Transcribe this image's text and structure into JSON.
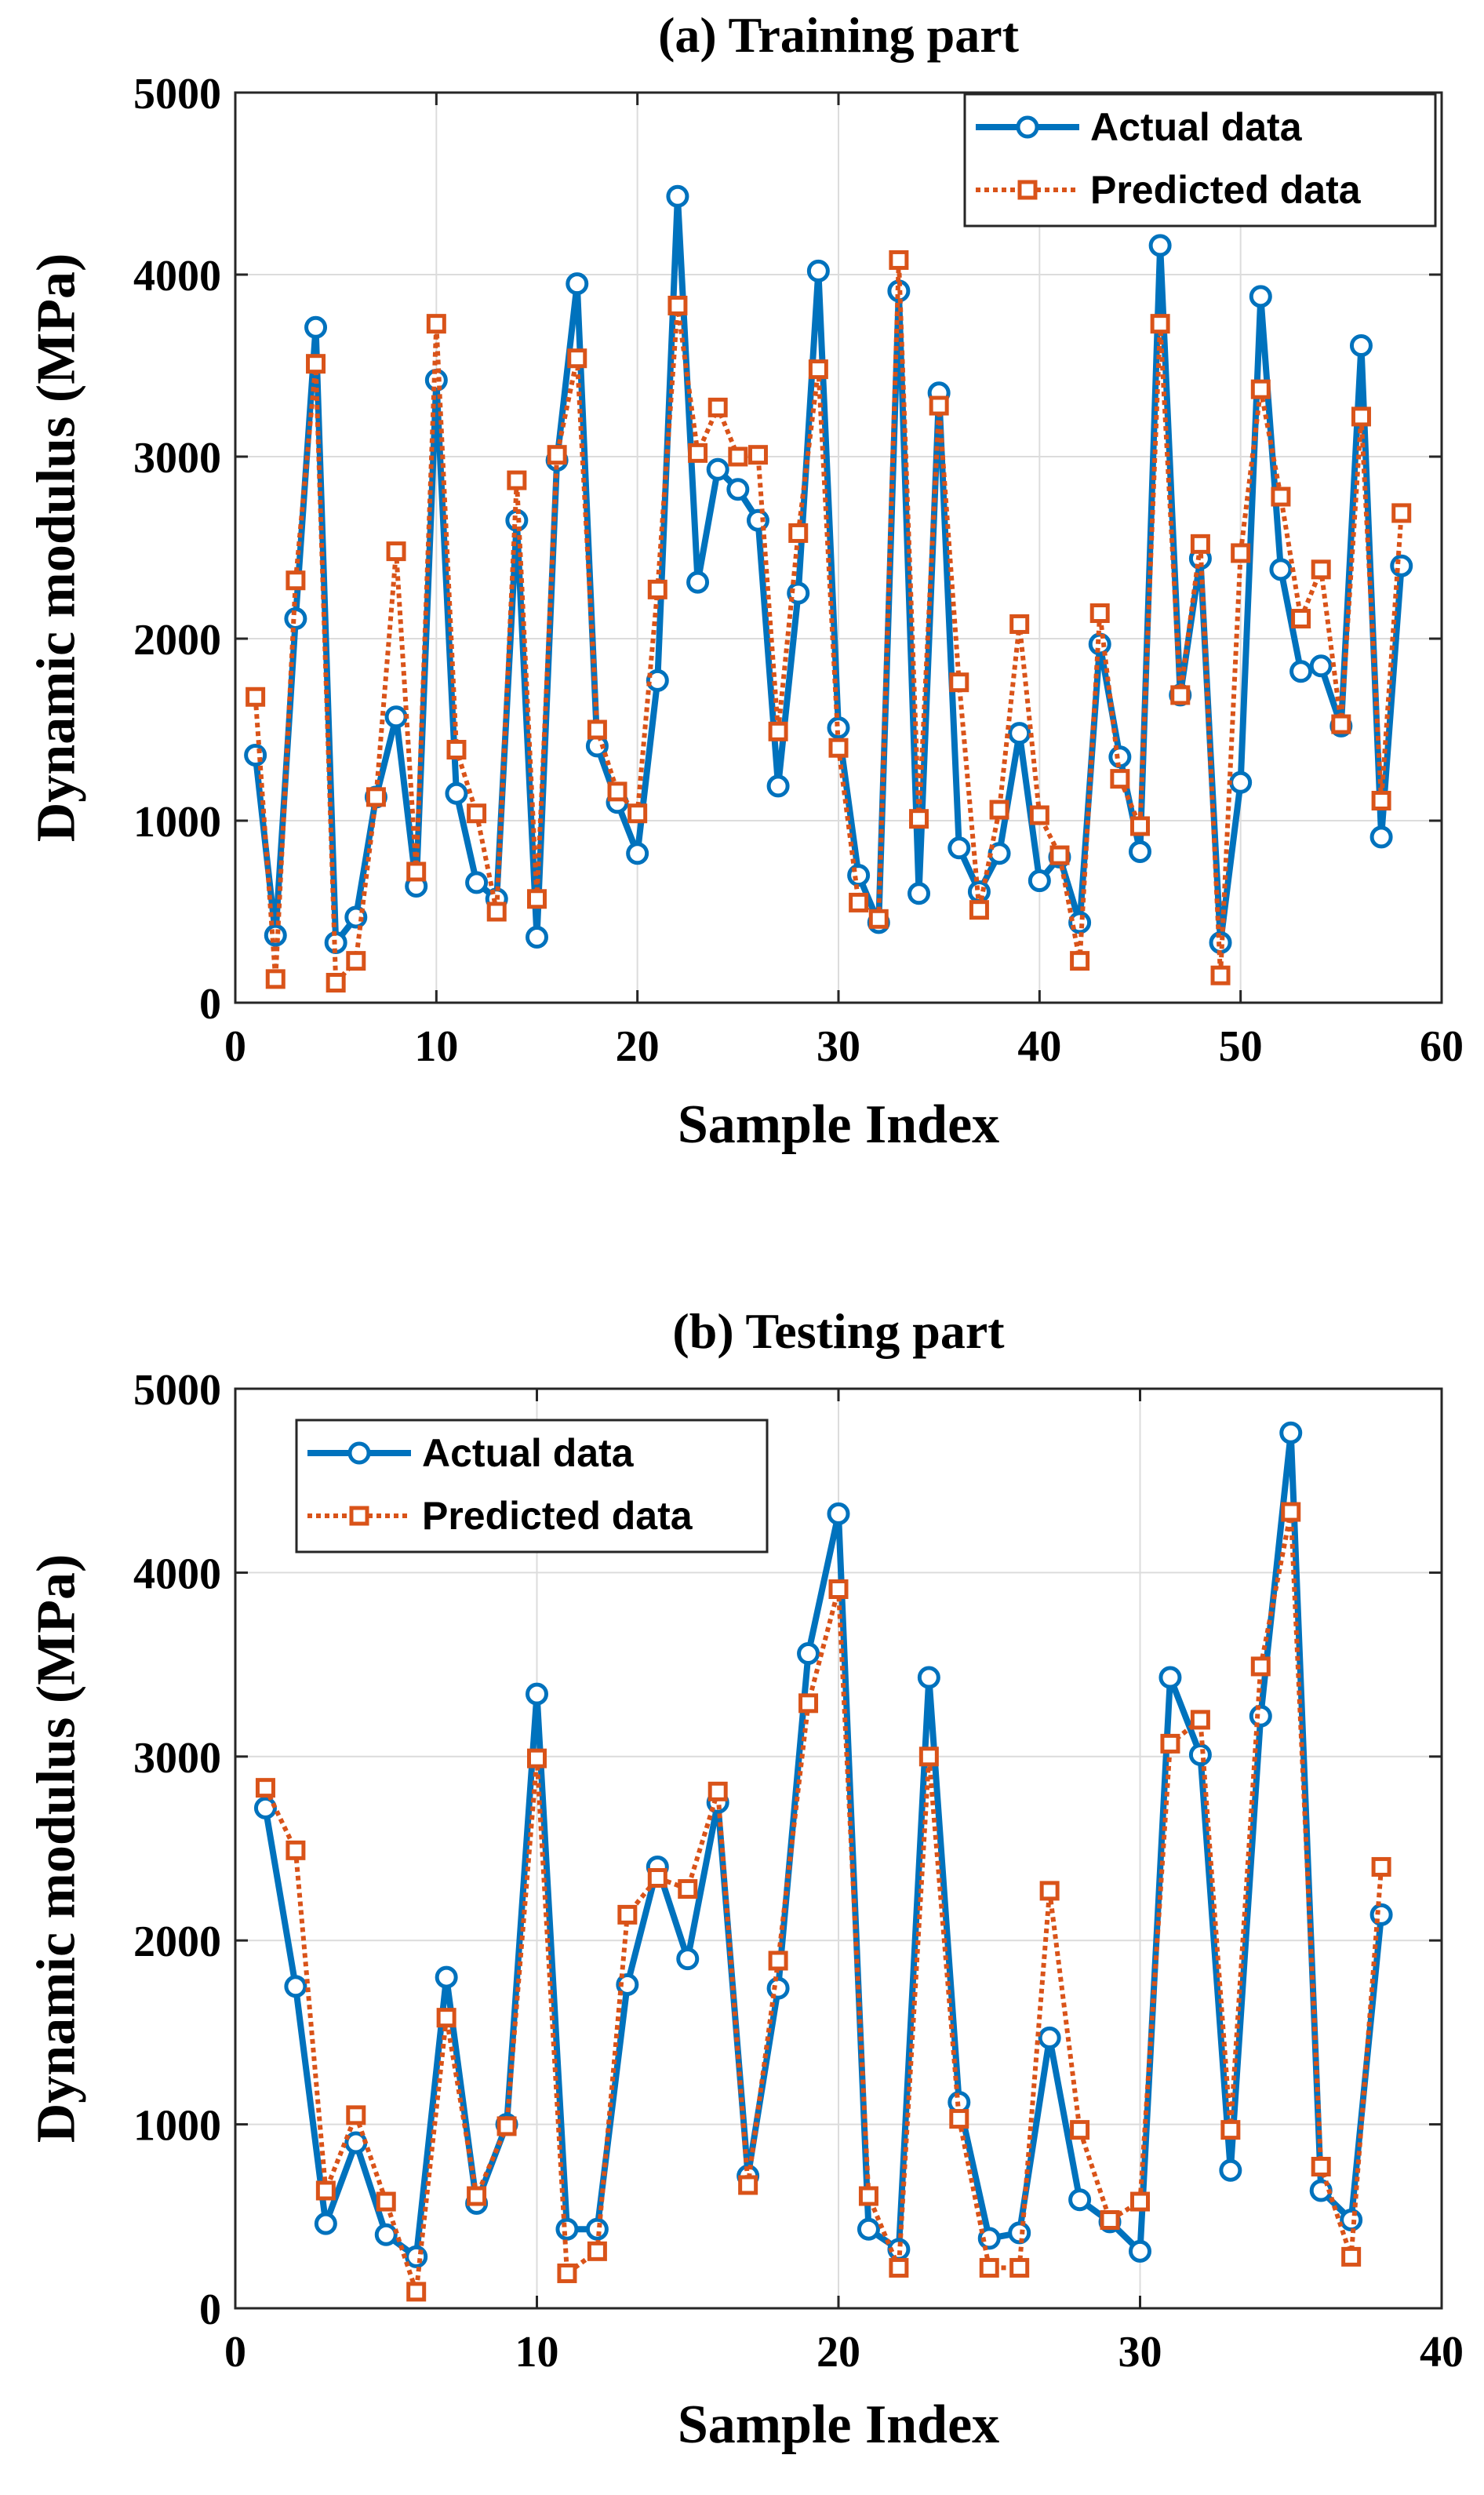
{
  "colors": {
    "actual": "#0072BD",
    "predicted": "#D95319",
    "grid": "#dcdcdc",
    "axis": "#262626"
  },
  "chart_data": [
    {
      "type": "line",
      "title": "(a) Training part",
      "xlabel": "Sample Index",
      "ylabel": "Dynamic modulus (MPa)",
      "xlim": [
        0,
        60
      ],
      "ylim": [
        0,
        5000
      ],
      "xticks": [
        0,
        10,
        20,
        30,
        40,
        50,
        60
      ],
      "yticks": [
        0,
        1000,
        2000,
        3000,
        4000,
        5000
      ],
      "grid": true,
      "legend_position": "top-right",
      "x": [
        1,
        2,
        3,
        4,
        5,
        6,
        7,
        8,
        9,
        10,
        11,
        12,
        13,
        14,
        15,
        16,
        17,
        18,
        19,
        20,
        21,
        22,
        23,
        24,
        25,
        26,
        27,
        28,
        29,
        30,
        31,
        32,
        33,
        34,
        35,
        36,
        37,
        38,
        39,
        40,
        41,
        42,
        43,
        44,
        45,
        46,
        47,
        48,
        49,
        50,
        51,
        52,
        53,
        54,
        55,
        56,
        57,
        58
      ],
      "series": [
        {
          "name": "Actual data",
          "marker": "circle",
          "line": "solid",
          "values": [
            1360,
            370,
            2110,
            3710,
            330,
            470,
            1130,
            1570,
            640,
            3420,
            1150,
            660,
            570,
            2650,
            360,
            2980,
            3950,
            1410,
            1100,
            820,
            1770,
            4430,
            2310,
            2930,
            2820,
            2650,
            1190,
            2250,
            4020,
            1510,
            700,
            440,
            3910,
            600,
            3350,
            850,
            610,
            820,
            1480,
            670,
            800,
            440,
            1970,
            1350,
            830,
            4160,
            1690,
            2440,
            330,
            1210,
            3880,
            2380,
            1820,
            1850,
            1520,
            3610,
            910,
            2400
          ]
        },
        {
          "name": "Predicted data",
          "marker": "square",
          "line": "dotted",
          "values": [
            1680,
            130,
            2320,
            3510,
            110,
            230,
            1130,
            2480,
            720,
            3730,
            1390,
            1040,
            500,
            2870,
            570,
            3010,
            3540,
            1500,
            1160,
            1040,
            2270,
            3830,
            3020,
            3270,
            3000,
            3010,
            1490,
            2580,
            3480,
            1400,
            550,
            460,
            4080,
            1010,
            3280,
            1760,
            510,
            1060,
            2080,
            1030,
            810,
            230,
            2140,
            1230,
            970,
            3730,
            1690,
            2520,
            150,
            2470,
            3370,
            2780,
            2110,
            2380,
            1530,
            3220,
            1110,
            2690
          ]
        }
      ]
    },
    {
      "type": "line",
      "title": "(b) Testing part",
      "xlabel": "Sample Index",
      "ylabel": "Dynamic modulus (MPa)",
      "xlim": [
        0,
        40
      ],
      "ylim": [
        0,
        5000
      ],
      "xticks": [
        0,
        10,
        20,
        30,
        40
      ],
      "yticks": [
        0,
        1000,
        2000,
        3000,
        4000,
        5000
      ],
      "grid": true,
      "legend_position": "top-left",
      "x": [
        1,
        2,
        3,
        4,
        5,
        6,
        7,
        8,
        9,
        10,
        11,
        12,
        13,
        14,
        15,
        16,
        17,
        18,
        19,
        20,
        21,
        22,
        23,
        24,
        25,
        26,
        27,
        28,
        29,
        30,
        31,
        32,
        33,
        34,
        35,
        36,
        37,
        38
      ],
      "series": [
        {
          "name": "Actual data",
          "marker": "circle",
          "line": "solid",
          "values": [
            2720,
            1750,
            460,
            900,
            400,
            280,
            1800,
            570,
            1000,
            3340,
            430,
            430,
            1760,
            2400,
            1900,
            2750,
            720,
            1740,
            3560,
            4320,
            430,
            320,
            3430,
            1120,
            380,
            410,
            1470,
            590,
            470,
            310,
            3430,
            3010,
            750,
            3220,
            4760,
            640,
            480,
            2140
          ]
        },
        {
          "name": "Predicted data",
          "marker": "square",
          "line": "dotted",
          "values": [
            2830,
            2490,
            640,
            1050,
            580,
            90,
            1580,
            610,
            990,
            2990,
            190,
            310,
            2140,
            2340,
            2280,
            2810,
            670,
            1890,
            3290,
            3910,
            610,
            220,
            3000,
            1030,
            220,
            220,
            2270,
            970,
            480,
            580,
            3070,
            3200,
            970,
            3490,
            4330,
            770,
            280,
            2400
          ]
        }
      ]
    }
  ]
}
